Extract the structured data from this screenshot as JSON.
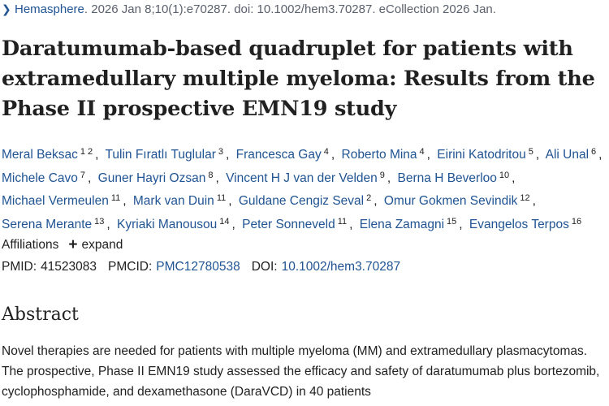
{
  "citation": {
    "journal": "Hemasphere",
    "details": ". 2026 Jan 8;10(1):e70287. doi: 10.1002/hem3.70287. eCollection 2026 Jan."
  },
  "title": "Daratumumab‐based quadruplet for patients with extramedullary multiple myeloma: Results from the Phase II prospective EMN19 study",
  "authors": [
    {
      "name": "Meral Beksac",
      "affs": [
        "1",
        "2"
      ]
    },
    {
      "name": "Tulin Fıratlı Tuglular",
      "affs": [
        "3"
      ]
    },
    {
      "name": "Francesca Gay",
      "affs": [
        "4"
      ]
    },
    {
      "name": "Roberto Mina",
      "affs": [
        "4"
      ]
    },
    {
      "name": "Eirini Katodritou",
      "affs": [
        "5"
      ]
    },
    {
      "name": "Ali Unal",
      "affs": [
        "6"
      ]
    },
    {
      "name": "Michele Cavo",
      "affs": [
        "7"
      ]
    },
    {
      "name": "Guner Hayri Ozsan",
      "affs": [
        "8"
      ]
    },
    {
      "name": "Vincent H J van der Velden",
      "affs": [
        "9"
      ]
    },
    {
      "name": "Berna H Beverloo",
      "affs": [
        "10"
      ]
    },
    {
      "name": "Michael Vermeulen",
      "affs": [
        "11"
      ]
    },
    {
      "name": "Mark van Duin",
      "affs": [
        "11"
      ]
    },
    {
      "name": "Guldane Cengiz Seval",
      "affs": [
        "2"
      ]
    },
    {
      "name": "Omur Gokmen Sevindik",
      "affs": [
        "12"
      ]
    },
    {
      "name": "Serena Merante",
      "affs": [
        "13"
      ]
    },
    {
      "name": "Kyriaki Manousou",
      "affs": [
        "14"
      ]
    },
    {
      "name": "Peter Sonneveld",
      "affs": [
        "11"
      ]
    },
    {
      "name": "Elena Zamagni",
      "affs": [
        "15"
      ]
    },
    {
      "name": "Evangelos Terpos",
      "affs": [
        "16"
      ]
    }
  ],
  "affiliations": {
    "label": "Affiliations",
    "expand_label": "expand"
  },
  "ids": {
    "pmid_label": "PMID:",
    "pmid": "41523083",
    "pmcid_label": "PMCID:",
    "pmcid": "PMC12780538",
    "doi_label": "DOI:",
    "doi": "10.1002/hem3.70287"
  },
  "abstract": {
    "heading": "Abstract",
    "text": "Novel therapies are needed for patients with multiple myeloma (MM) and extramedullary plasmacytomas. The prospective, Phase II EMN19 study assessed the efficacy and safety of daratumumab plus bortezomib, cyclophosphamide, and dexamethasone (DaraVCD) in 40 patients"
  }
}
